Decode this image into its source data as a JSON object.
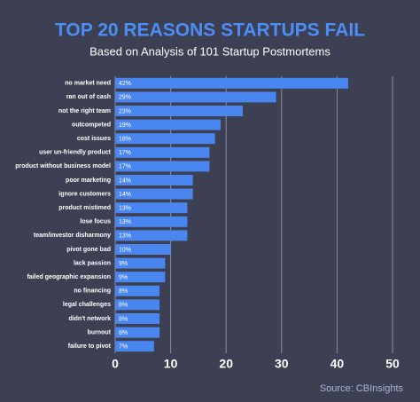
{
  "chart_data": {
    "type": "hbar",
    "title": "TOP 20 REASONS STARTUPS FAIL",
    "subtitle": "Based on Analysis of 101 Startup Postmortems",
    "source": "Source: CBInsights",
    "categories": [
      "no market need",
      "ran out of cash",
      "not the right team",
      "outcompeted",
      "cost issues",
      "user un-friendly product",
      "product without business model",
      "poor marketing",
      "ignore customers",
      "product mistimed",
      "lose focus",
      "team/investor disharmony",
      "pivot gone bad",
      "lack passion",
      "failed geographic expansion",
      "no financing",
      "legal challenges",
      "didn't network",
      "burnout",
      "failure to pivot"
    ],
    "values": [
      42,
      29,
      23,
      19,
      18,
      17,
      17,
      14,
      14,
      13,
      13,
      13,
      10,
      9,
      9,
      8,
      8,
      8,
      8,
      7
    ],
    "value_labels": [
      "42%",
      "29%",
      "23%",
      "19%",
      "18%",
      "17%",
      "17%",
      "14%",
      "14%",
      "13%",
      "13%",
      "13%",
      "10%",
      "9%",
      "9%",
      "8%",
      "8%",
      "8%",
      "8%",
      "7%"
    ],
    "color": "#4a86f0",
    "xlim": [
      0,
      50
    ],
    "xticks": [
      0,
      10,
      20,
      30,
      40,
      50
    ],
    "grid": true
  }
}
